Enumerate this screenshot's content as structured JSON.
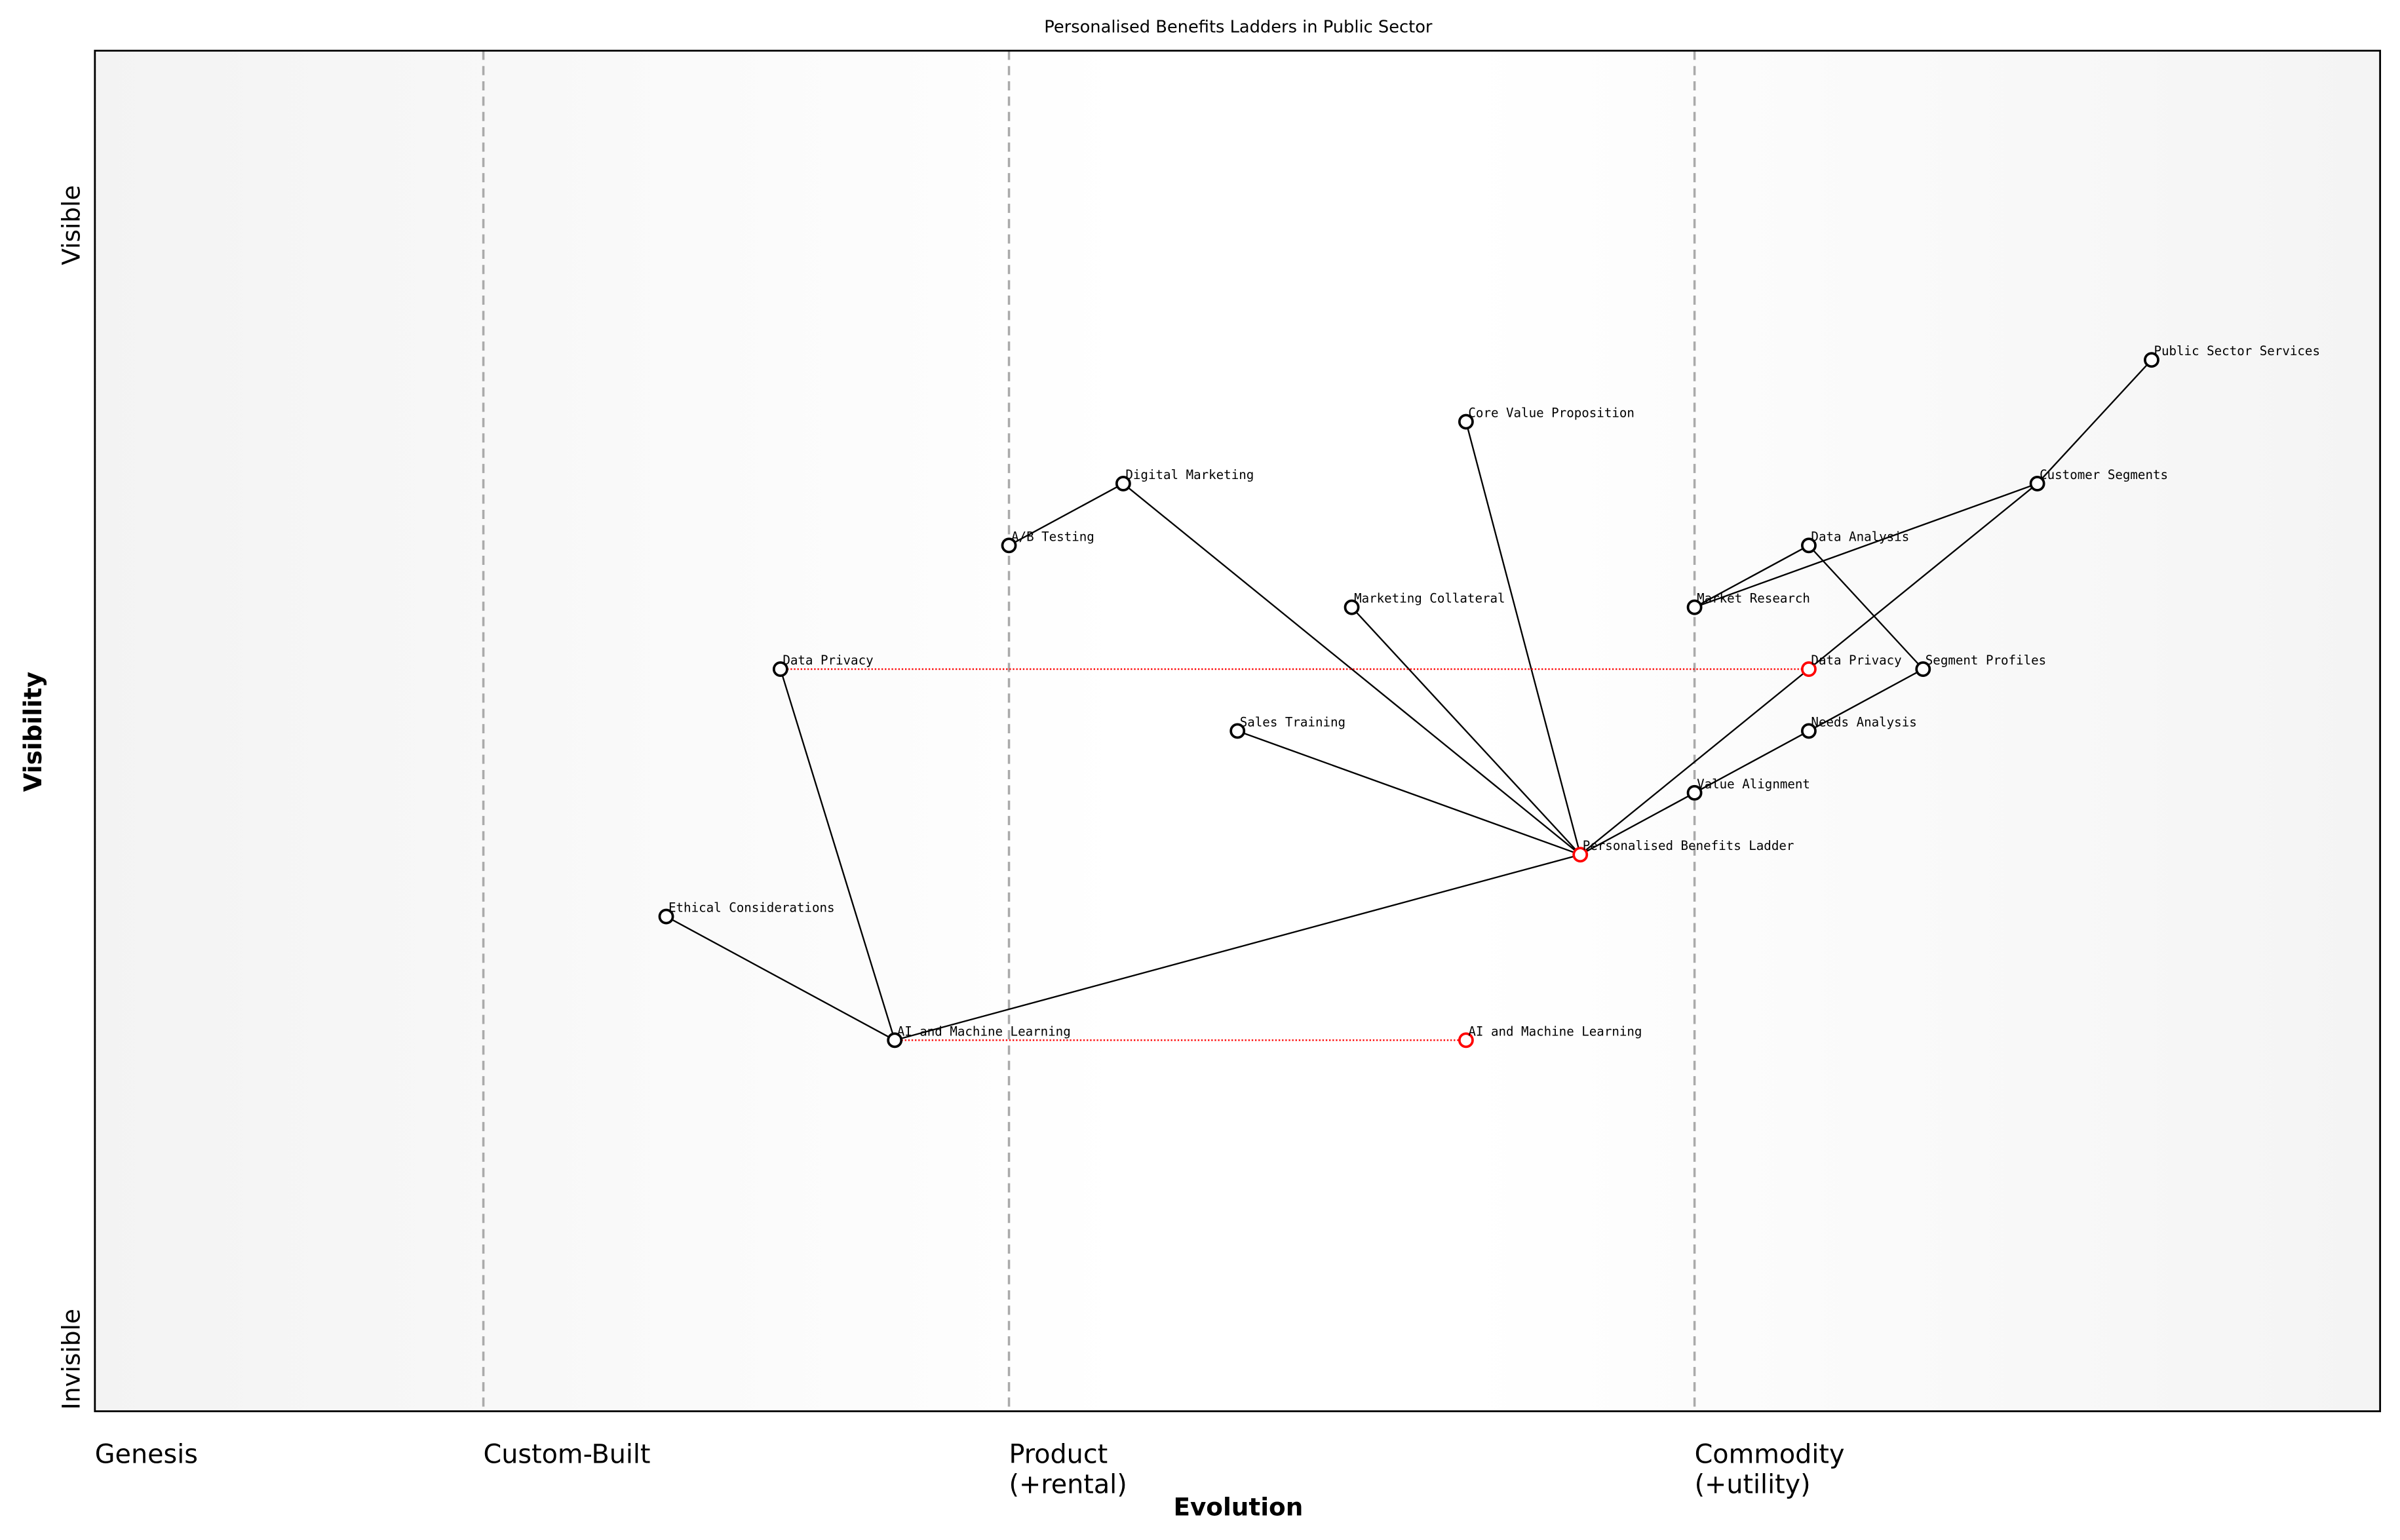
{
  "title": "Personalised Benefits Ladders in Public Sector",
  "x_axis_label": "Evolution",
  "y_axis_label": "Visibility",
  "y_top_label": "Visible",
  "y_bottom_label": "Invisible",
  "stages": [
    {
      "label": "Genesis",
      "x": 0.0
    },
    {
      "label": "Custom-Built",
      "x": 0.17
    },
    {
      "label": "Product\n(+rental)",
      "x": 0.4
    },
    {
      "label": "Commodity\n(+utility)",
      "x": 0.7
    }
  ],
  "colors": {
    "node": "#000000",
    "highlight": "#ff0000",
    "stage_line": "#aaaaaa",
    "background_edge": "#f3f3f3"
  },
  "chart_data": {
    "type": "wardley-map",
    "xlim": [
      0,
      1
    ],
    "ylim": [
      0,
      1.1
    ],
    "nodes": [
      {
        "id": "pss",
        "label": "Public Sector Services",
        "x": 0.9,
        "y": 0.85,
        "highlight": false
      },
      {
        "id": "cs",
        "label": "Customer Segments",
        "x": 0.85,
        "y": 0.75,
        "highlight": false
      },
      {
        "id": "cvp",
        "label": "Core Value Proposition",
        "x": 0.6,
        "y": 0.8,
        "highlight": false
      },
      {
        "id": "dm",
        "label": "Digital Marketing",
        "x": 0.45,
        "y": 0.75,
        "highlight": false
      },
      {
        "id": "ab",
        "label": "A/B Testing",
        "x": 0.4,
        "y": 0.7,
        "highlight": false
      },
      {
        "id": "da",
        "label": "Data Analysis",
        "x": 0.75,
        "y": 0.7,
        "highlight": false
      },
      {
        "id": "mr",
        "label": "Market Research",
        "x": 0.7,
        "y": 0.65,
        "highlight": false
      },
      {
        "id": "mc",
        "label": "Marketing Collateral",
        "x": 0.55,
        "y": 0.65,
        "highlight": false
      },
      {
        "id": "dp",
        "label": "Data Privacy",
        "x": 0.3,
        "y": 0.6,
        "highlight": false
      },
      {
        "id": "dp2",
        "label": "Data Privacy",
        "x": 0.75,
        "y": 0.6,
        "highlight": true
      },
      {
        "id": "sp",
        "label": "Segment Profiles",
        "x": 0.8,
        "y": 0.6,
        "highlight": false
      },
      {
        "id": "st",
        "label": "Sales Training",
        "x": 0.5,
        "y": 0.55,
        "highlight": false
      },
      {
        "id": "na",
        "label": "Needs Analysis",
        "x": 0.75,
        "y": 0.55,
        "highlight": false
      },
      {
        "id": "va",
        "label": "Value Alignment",
        "x": 0.7,
        "y": 0.5,
        "highlight": false
      },
      {
        "id": "pbl",
        "label": "Personalised Benefits Ladder",
        "x": 0.65,
        "y": 0.45,
        "highlight": true
      },
      {
        "id": "ec",
        "label": "Ethical Considerations",
        "x": 0.25,
        "y": 0.4,
        "highlight": false
      },
      {
        "id": "ai",
        "label": "AI and Machine Learning",
        "x": 0.35,
        "y": 0.3,
        "highlight": false
      },
      {
        "id": "ai2",
        "label": "AI and Machine Learning",
        "x": 0.6,
        "y": 0.3,
        "highlight": true
      }
    ],
    "links": [
      [
        "cs",
        "pss"
      ],
      [
        "cs",
        "mr"
      ],
      [
        "mr",
        "da"
      ],
      [
        "da",
        "sp"
      ],
      [
        "sp",
        "na"
      ],
      [
        "na",
        "va"
      ],
      [
        "pbl",
        "va"
      ],
      [
        "pbl",
        "cs"
      ],
      [
        "pbl",
        "cvp"
      ],
      [
        "pbl",
        "dm"
      ],
      [
        "pbl",
        "mc"
      ],
      [
        "pbl",
        "st"
      ],
      [
        "pbl",
        "ai"
      ],
      [
        "dm",
        "ab"
      ],
      [
        "ai",
        "dp"
      ],
      [
        "ai",
        "ec"
      ]
    ],
    "evolve_links": [
      [
        "dp",
        "dp2"
      ],
      [
        "ai",
        "ai2"
      ]
    ]
  }
}
